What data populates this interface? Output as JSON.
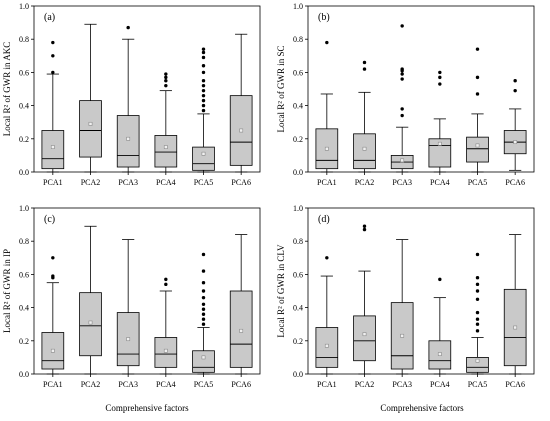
{
  "x_title": "Comprehensive factors",
  "chart_data": [
    {
      "type": "box",
      "label": "(a)",
      "ylabel": "Local R² of GWR in AKC",
      "ylim": [
        0,
        1.0
      ],
      "yticks": [
        "0.0",
        "0.2",
        "0.4",
        "0.6",
        "0.8",
        "1.0"
      ],
      "categories": [
        "PCA1",
        "PCA2",
        "PCA3",
        "PCA4",
        "PCA5",
        "PCA6"
      ],
      "boxes": [
        {
          "min": 0.0,
          "q1": 0.02,
          "median": 0.08,
          "q3": 0.25,
          "max": 0.59,
          "mean": 0.15,
          "outliers": [
            0.6,
            0.7,
            0.78
          ]
        },
        {
          "min": 0.0,
          "q1": 0.09,
          "median": 0.25,
          "q3": 0.43,
          "max": 0.89,
          "mean": 0.29,
          "outliers": []
        },
        {
          "min": 0.0,
          "q1": 0.03,
          "median": 0.1,
          "q3": 0.34,
          "max": 0.8,
          "mean": 0.2,
          "outliers": [
            0.87
          ]
        },
        {
          "min": 0.0,
          "q1": 0.03,
          "median": 0.12,
          "q3": 0.22,
          "max": 0.49,
          "mean": 0.15,
          "outliers": [
            0.52,
            0.55,
            0.57,
            0.59
          ]
        },
        {
          "min": 0.0,
          "q1": 0.01,
          "median": 0.05,
          "q3": 0.15,
          "max": 0.35,
          "mean": 0.11,
          "outliers": [
            0.37,
            0.4,
            0.43,
            0.46,
            0.49,
            0.52,
            0.55,
            0.6,
            0.64,
            0.69,
            0.72,
            0.74
          ]
        },
        {
          "min": 0.0,
          "q1": 0.04,
          "median": 0.18,
          "q3": 0.46,
          "max": 0.83,
          "mean": 0.25,
          "outliers": []
        }
      ]
    },
    {
      "type": "box",
      "label": "(b)",
      "ylabel": "Local R² of GWR in SC",
      "ylim": [
        0,
        1.0
      ],
      "yticks": [
        "0.0",
        "0.2",
        "0.4",
        "0.6",
        "0.8",
        "1.0"
      ],
      "categories": [
        "PCA1",
        "PCA2",
        "PCA3",
        "PCA4",
        "PCA5",
        "PCA6"
      ],
      "boxes": [
        {
          "min": 0.0,
          "q1": 0.02,
          "median": 0.07,
          "q3": 0.26,
          "max": 0.47,
          "mean": 0.14,
          "outliers": [
            0.78
          ]
        },
        {
          "min": 0.0,
          "q1": 0.02,
          "median": 0.07,
          "q3": 0.23,
          "max": 0.48,
          "mean": 0.14,
          "outliers": [
            0.62,
            0.66
          ]
        },
        {
          "min": 0.0,
          "q1": 0.02,
          "median": 0.06,
          "q3": 0.1,
          "max": 0.27,
          "mean": 0.07,
          "outliers": [
            0.34,
            0.38,
            0.56,
            0.59,
            0.61,
            0.62,
            0.88
          ]
        },
        {
          "min": 0.0,
          "q1": 0.03,
          "median": 0.16,
          "q3": 0.2,
          "max": 0.32,
          "mean": 0.17,
          "outliers": [
            0.53,
            0.57,
            0.6
          ]
        },
        {
          "min": 0.0,
          "q1": 0.06,
          "median": 0.14,
          "q3": 0.21,
          "max": 0.35,
          "mean": 0.16,
          "outliers": [
            0.47,
            0.57,
            0.74
          ]
        },
        {
          "min": 0.01,
          "q1": 0.11,
          "median": 0.18,
          "q3": 0.25,
          "max": 0.38,
          "mean": 0.18,
          "outliers": [
            0.49,
            0.55
          ]
        }
      ]
    },
    {
      "type": "box",
      "label": "(c)",
      "ylabel": "Local R² of GWR in IP",
      "ylim": [
        0,
        1.0
      ],
      "yticks": [
        "0.0",
        "0.2",
        "0.4",
        "0.6",
        "0.8",
        "1.0"
      ],
      "categories": [
        "PCA1",
        "PCA2",
        "PCA3",
        "PCA4",
        "PCA5",
        "PCA6"
      ],
      "boxes": [
        {
          "min": 0.0,
          "q1": 0.03,
          "median": 0.08,
          "q3": 0.25,
          "max": 0.55,
          "mean": 0.14,
          "outliers": [
            0.58,
            0.59,
            0.7
          ]
        },
        {
          "min": 0.0,
          "q1": 0.11,
          "median": 0.29,
          "q3": 0.49,
          "max": 0.89,
          "mean": 0.31,
          "outliers": []
        },
        {
          "min": 0.0,
          "q1": 0.05,
          "median": 0.12,
          "q3": 0.37,
          "max": 0.81,
          "mean": 0.21,
          "outliers": []
        },
        {
          "min": 0.0,
          "q1": 0.04,
          "median": 0.12,
          "q3": 0.22,
          "max": 0.5,
          "mean": 0.14,
          "outliers": [
            0.54,
            0.57
          ]
        },
        {
          "min": 0.0,
          "q1": 0.01,
          "median": 0.04,
          "q3": 0.14,
          "max": 0.28,
          "mean": 0.1,
          "outliers": [
            0.3,
            0.33,
            0.36,
            0.39,
            0.42,
            0.46,
            0.5,
            0.55,
            0.62,
            0.72
          ]
        },
        {
          "min": 0.0,
          "q1": 0.04,
          "median": 0.18,
          "q3": 0.5,
          "max": 0.84,
          "mean": 0.26,
          "outliers": []
        }
      ]
    },
    {
      "type": "box",
      "label": "(d)",
      "ylabel": "Local R² of GWR in CLV",
      "ylim": [
        0,
        1.0
      ],
      "yticks": [
        "0.0",
        "0.2",
        "0.4",
        "0.6",
        "0.8",
        "1.0"
      ],
      "categories": [
        "PCA1",
        "PCA2",
        "PCA3",
        "PCA4",
        "PCA5",
        "PCA6"
      ],
      "boxes": [
        {
          "min": 0.0,
          "q1": 0.04,
          "median": 0.1,
          "q3": 0.28,
          "max": 0.59,
          "mean": 0.17,
          "outliers": [
            0.7
          ]
        },
        {
          "min": 0.0,
          "q1": 0.08,
          "median": 0.2,
          "q3": 0.35,
          "max": 0.62,
          "mean": 0.24,
          "outliers": [
            0.87,
            0.89
          ]
        },
        {
          "min": 0.0,
          "q1": 0.03,
          "median": 0.11,
          "q3": 0.43,
          "max": 0.81,
          "mean": 0.23,
          "outliers": []
        },
        {
          "min": 0.0,
          "q1": 0.03,
          "median": 0.08,
          "q3": 0.2,
          "max": 0.46,
          "mean": 0.12,
          "outliers": [
            0.57
          ]
        },
        {
          "min": 0.0,
          "q1": 0.01,
          "median": 0.04,
          "q3": 0.1,
          "max": 0.22,
          "mean": 0.08,
          "outliers": [
            0.26,
            0.3,
            0.33,
            0.37,
            0.45,
            0.5,
            0.54,
            0.58,
            0.72
          ]
        },
        {
          "min": 0.0,
          "q1": 0.05,
          "median": 0.22,
          "q3": 0.51,
          "max": 0.84,
          "mean": 0.28,
          "outliers": []
        }
      ]
    }
  ]
}
